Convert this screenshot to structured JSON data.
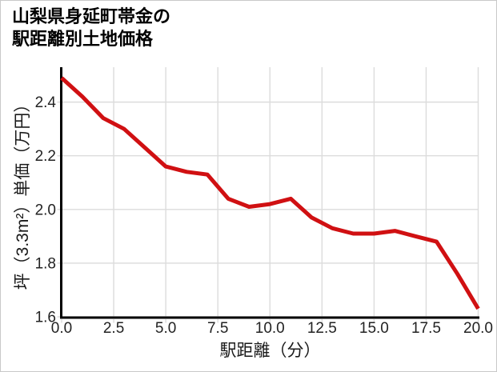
{
  "chart_data": {
    "type": "line",
    "title": "山梨県身延町帯金の駅距離別土地価格",
    "title_lines": [
      "山梨県身延町帯金の",
      "駅距離別土地価格"
    ],
    "xlabel": "駅距離（分）",
    "ylabel": "坪（3.3m²）単価（万円）",
    "x": [
      0,
      1,
      2,
      3,
      4,
      5,
      6,
      7,
      8,
      9,
      10,
      11,
      12,
      13,
      14,
      15,
      16,
      17,
      18,
      19,
      20
    ],
    "y": [
      2.49,
      2.42,
      2.34,
      2.3,
      2.23,
      2.16,
      2.14,
      2.13,
      2.04,
      2.01,
      2.02,
      2.04,
      1.97,
      1.93,
      1.91,
      1.91,
      1.92,
      1.9,
      1.88,
      1.76,
      1.63
    ],
    "xlim": [
      0,
      20
    ],
    "ylim": [
      1.6,
      2.53
    ],
    "xticks": [
      0,
      2.5,
      5,
      7.5,
      10,
      12.5,
      15,
      17.5,
      20
    ],
    "xtick_labels": [
      "0.0",
      "2.5",
      "5.0",
      "7.5",
      "10.0",
      "12.5",
      "15.0",
      "17.5",
      "20.0"
    ],
    "yticks": [
      1.6,
      1.8,
      2.0,
      2.2,
      2.4
    ],
    "ytick_labels": [
      "1.6",
      "1.8",
      "2.0",
      "2.2",
      "2.4"
    ],
    "grid": true,
    "legend": "none",
    "colors": {
      "line": "#d01012",
      "grid": "#dcdcdc",
      "axis": "#000000",
      "tick_label": "#222222",
      "title": "#000000",
      "background": "#ffffff",
      "page_border": "#c9c9c9"
    }
  }
}
